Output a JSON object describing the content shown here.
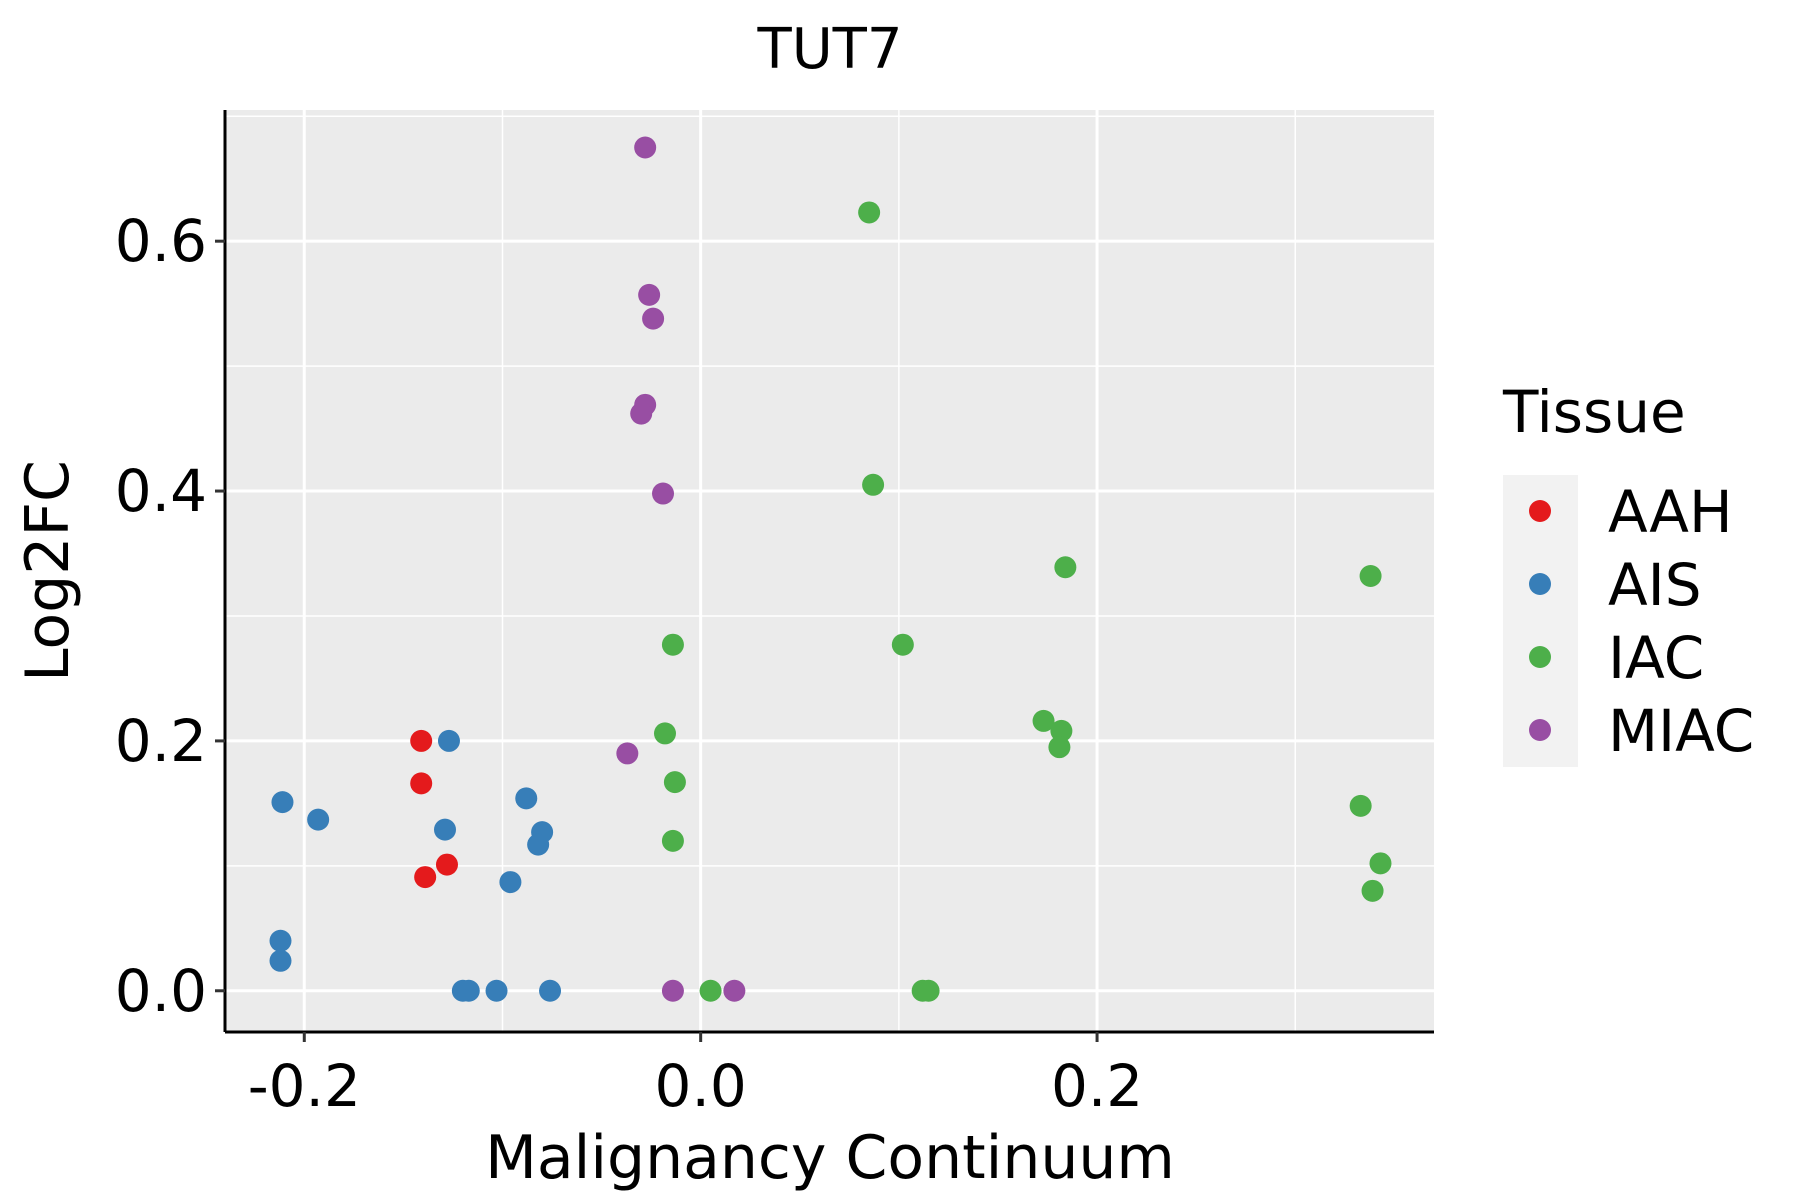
{
  "chart_data": {
    "type": "scatter",
    "title": "TUT7",
    "xlabel": "Malignancy Continuum",
    "ylabel": "Log2FC",
    "xlim": [
      -0.24,
      0.37
    ],
    "ylim": [
      -0.033,
      0.705
    ],
    "x_ticks": [
      -0.2,
      0.0,
      0.2
    ],
    "x_tick_labels": [
      "-0.2",
      "0.0",
      "0.2"
    ],
    "y_ticks": [
      0.0,
      0.2,
      0.4,
      0.6
    ],
    "y_tick_labels": [
      "0.0",
      "0.2",
      "0.4",
      "0.6"
    ],
    "grid": true,
    "legend": {
      "title": "Tissue",
      "position": "right"
    },
    "series": [
      {
        "name": "AAH",
        "color": "#E41A1C",
        "points": [
          [
            -0.141,
            0.2
          ],
          [
            -0.141,
            0.166
          ],
          [
            -0.128,
            0.101
          ],
          [
            -0.139,
            0.091
          ]
        ]
      },
      {
        "name": "AIS",
        "color": "#377EB8",
        "points": [
          [
            -0.127,
            0.2
          ],
          [
            -0.211,
            0.151
          ],
          [
            -0.193,
            0.137
          ],
          [
            -0.129,
            0.129
          ],
          [
            -0.088,
            0.154
          ],
          [
            -0.08,
            0.127
          ],
          [
            -0.082,
            0.117
          ],
          [
            -0.096,
            0.087
          ],
          [
            -0.212,
            0.04
          ],
          [
            -0.212,
            0.024
          ],
          [
            -0.12,
            0.0
          ],
          [
            -0.117,
            0.0
          ],
          [
            -0.103,
            0.0
          ],
          [
            -0.076,
            0.0
          ]
        ]
      },
      {
        "name": "IAC",
        "color": "#4DAF4A",
        "points": [
          [
            0.085,
            0.623
          ],
          [
            0.087,
            0.405
          ],
          [
            0.184,
            0.339
          ],
          [
            0.338,
            0.332
          ],
          [
            -0.014,
            0.277
          ],
          [
            0.102,
            0.277
          ],
          [
            -0.018,
            0.206
          ],
          [
            0.173,
            0.216
          ],
          [
            0.182,
            0.208
          ],
          [
            0.181,
            0.195
          ],
          [
            -0.013,
            0.167
          ],
          [
            -0.014,
            0.12
          ],
          [
            0.333,
            0.148
          ],
          [
            0.343,
            0.102
          ],
          [
            0.339,
            0.08
          ],
          [
            0.005,
            0.0
          ],
          [
            0.112,
            0.0
          ],
          [
            0.115,
            0.0
          ]
        ]
      },
      {
        "name": "MIAC",
        "color": "#984EA3",
        "points": [
          [
            -0.028,
            0.675
          ],
          [
            -0.026,
            0.557
          ],
          [
            -0.024,
            0.538
          ],
          [
            -0.028,
            0.469
          ],
          [
            -0.03,
            0.462
          ],
          [
            -0.019,
            0.398
          ],
          [
            -0.037,
            0.19
          ],
          [
            -0.014,
            0.0
          ],
          [
            0.017,
            0.0
          ]
        ]
      }
    ]
  }
}
